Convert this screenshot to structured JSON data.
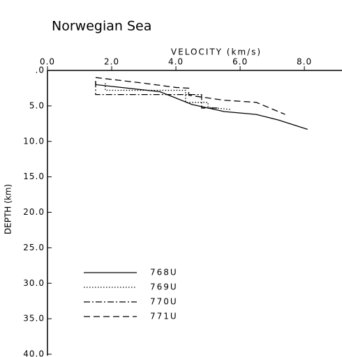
{
  "chart_data": {
    "type": "line",
    "title": "Norwegian Sea",
    "x_label": "VELOCITY (km/s)",
    "y_label": "DEPTH (km)",
    "xlim": [
      0,
      9.15
    ],
    "ylim": [
      0,
      40
    ],
    "xticks": [
      {
        "value": 0,
        "label": "0.0"
      },
      {
        "value": 2,
        "label": "2.0"
      },
      {
        "value": 4,
        "label": "4.0"
      },
      {
        "value": 6,
        "label": "6.0"
      },
      {
        "value": 8,
        "label": "8.0"
      }
    ],
    "yticks": [
      {
        "value": 0,
        "label": ".0"
      },
      {
        "value": 5,
        "label": "5.0"
      },
      {
        "value": 10,
        "label": "10.0"
      },
      {
        "value": 15,
        "label": "15.0"
      },
      {
        "value": 20,
        "label": "20.0"
      },
      {
        "value": 25,
        "label": "25.0"
      },
      {
        "value": 30,
        "label": "30.0"
      },
      {
        "value": 35,
        "label": "35.0"
      },
      {
        "value": 40,
        "label": "40.0"
      }
    ],
    "y_inverted": true,
    "legend": "lower left",
    "series": [
      {
        "name": "768U",
        "color": "#000000",
        "dash": "solid",
        "x": [
          1.5,
          1.5,
          3.5,
          4.5,
          5.0,
          5.5,
          6.5,
          7.2,
          8.1
        ],
        "values": [
          1.5,
          2.0,
          3.0,
          4.8,
          5.3,
          5.8,
          6.2,
          7.0,
          8.3
        ]
      },
      {
        "name": "769U",
        "color": "#000000",
        "dash": "dotted",
        "x": [
          1.8,
          1.8,
          4.3,
          4.3,
          5.0,
          5.0,
          5.7
        ],
        "values": [
          1.8,
          2.8,
          2.8,
          4.5,
          4.5,
          5.2,
          5.5
        ]
      },
      {
        "name": "770U",
        "color": "#000000",
        "dash": "dashdot",
        "x": [
          1.5,
          1.5,
          4.8,
          4.8,
          5.3
        ],
        "values": [
          1.5,
          3.4,
          3.4,
          5.3,
          5.3
        ]
      },
      {
        "name": "771U",
        "color": "#000000",
        "dash": "dashed",
        "x": [
          1.5,
          3.0,
          4.0,
          4.4,
          4.4,
          5.5,
          6.5,
          7.4
        ],
        "values": [
          1.0,
          1.8,
          2.4,
          2.5,
          3.5,
          4.2,
          4.5,
          6.2
        ]
      }
    ]
  }
}
